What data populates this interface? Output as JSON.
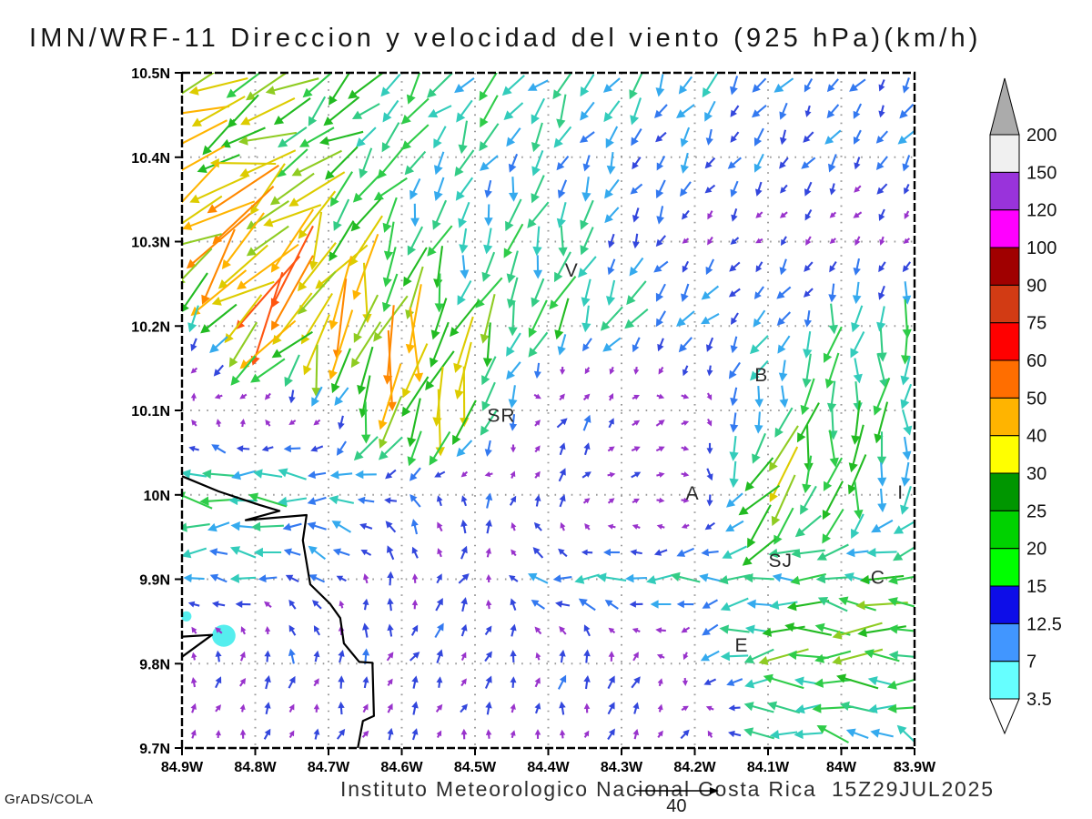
{
  "title": "IMN/WRF-11 Direccion y velocidad del viento (925 hPa)(km/h)",
  "footer": {
    "annotation": "Instituto Meteorologico Nacional Costa Rica  15Z29JUL2025",
    "credit": "GrADS/COLA"
  },
  "reference_vector": {
    "label": "40",
    "speed_kmh": 40
  },
  "chart_data": {
    "type": "vector_field_map",
    "title": "IMN/WRF-11 Direccion y velocidad del viento (925 hPa)(km/h)",
    "x_axis": {
      "labels": [
        "84.9W",
        "84.8W",
        "84.7W",
        "84.6W",
        "84.5W",
        "84.4W",
        "84.3W",
        "84.2W",
        "84.1W",
        "84W",
        "83.9W"
      ],
      "lon_min": -84.9,
      "lon_max": -83.9
    },
    "y_axis": {
      "labels": [
        "10.5N",
        "10.4N",
        "10.3N",
        "10.2N",
        "10.1N",
        "10N",
        "9.9N",
        "9.8N",
        "9.7N"
      ],
      "lat_max": 10.5,
      "lat_min": 9.7
    },
    "grid_step_deg": 0.1,
    "grid_on": true,
    "wind_field": {
      "units": "km/h",
      "lats": [
        10.5,
        10.4,
        10.3,
        10.2,
        10.1,
        10.0,
        9.9,
        9.8,
        9.7
      ],
      "lons": [
        -84.9,
        -84.8,
        -84.7,
        -84.6,
        -84.5,
        -84.4,
        -84.3,
        -84.2,
        -84.1,
        -84.0,
        -83.9
      ],
      "direction_deg_toward": [
        [
          235,
          232,
          228,
          226,
          224,
          220,
          216,
          212,
          214,
          216,
          214
        ],
        [
          245,
          250,
          235,
          215,
          208,
          205,
          210,
          211,
          211,
          212,
          211
        ],
        [
          232,
          228,
          210,
          200,
          190,
          195,
          205,
          218,
          222,
          220,
          218
        ],
        [
          150,
          225,
          202,
          192,
          205,
          200,
          215,
          220,
          225,
          190,
          185
        ],
        [
          10,
          40,
          190,
          195,
          197,
          25,
          35,
          100,
          190,
          185,
          182
        ],
        [
          272,
          268,
          272,
          300,
          355,
          30,
          80,
          95,
          215,
          188,
          182
        ],
        [
          268,
          278,
          310,
          0,
          30,
          280,
          268,
          266,
          268,
          282,
          272
        ],
        [
          5,
          25,
          5,
          28,
          30,
          5,
          25,
          200,
          266,
          268,
          267
        ],
        [
          10,
          20,
          28,
          18,
          8,
          3,
          18,
          30,
          280,
          288,
          310
        ]
      ],
      "speed_kmh": [
        [
          30,
          28,
          25,
          23,
          22,
          20,
          16,
          14,
          12,
          11,
          11
        ],
        [
          42,
          36,
          26,
          18,
          16,
          14,
          12,
          11,
          10,
          10,
          10
        ],
        [
          50,
          46,
          38,
          22,
          15,
          22,
          11,
          6,
          6,
          5,
          5
        ],
        [
          6,
          55,
          46,
          40,
          26,
          22,
          18,
          14,
          12,
          18,
          20
        ],
        [
          5,
          5,
          7,
          45,
          33,
          10,
          8,
          6,
          18,
          26,
          18
        ],
        [
          20,
          23,
          16,
          10,
          8,
          8,
          5,
          5,
          38,
          26,
          15
        ],
        [
          12,
          12,
          8,
          8,
          8,
          14,
          15,
          16,
          18,
          23,
          26
        ],
        [
          5,
          8,
          8,
          8,
          8,
          8,
          10,
          8,
          25,
          28,
          27
        ],
        [
          5,
          6,
          6,
          6,
          5,
          5,
          7,
          9,
          16,
          15,
          11
        ]
      ]
    },
    "speed_colors": {
      "thresholds": [
        6.5,
        9.5,
        12.5,
        15.5,
        18.5,
        22,
        26,
        31,
        36,
        42,
        48,
        56
      ],
      "colors": [
        "#9933CC",
        "#3347DD",
        "#3379F0",
        "#35AAEE",
        "#33CCBB",
        "#33CC85",
        "#2FCC49",
        "#22BB22",
        "#8FCC22",
        "#DDCC00",
        "#FFB400",
        "#FF8800",
        "#FF5511"
      ]
    },
    "colorbar": {
      "tick_labels": [
        "3.5",
        "7",
        "12.5",
        "15",
        "20",
        "25",
        "30",
        "40",
        "50",
        "60",
        "75",
        "90",
        "100",
        "120",
        "150",
        "200"
      ],
      "segment_colors": [
        "#66FFFF",
        "#4196FF",
        "#0D0DE8",
        "#00FF00",
        "#00D200",
        "#009600",
        "#FFFF00",
        "#FFB400",
        "#FF6E00",
        "#FF0000",
        "#D23B14",
        "#A00000",
        "#FF00FF",
        "#9933DB",
        "#F0F0F0"
      ],
      "above_color": "#ABABAB",
      "below_color": "#FFFFFF"
    },
    "cities": [
      {
        "label": "V",
        "lon": -84.368,
        "lat": 10.267
      },
      {
        "label": "B",
        "lon": -84.109,
        "lat": 10.143
      },
      {
        "label": "SR",
        "lon": -84.464,
        "lat": 10.095
      },
      {
        "label": "A",
        "lon": -84.203,
        "lat": 10.003
      },
      {
        "label": "SJ",
        "lon": -84.083,
        "lat": 9.923
      },
      {
        "label": "C",
        "lon": -83.95,
        "lat": 9.903
      },
      {
        "label": "E",
        "lon": -84.136,
        "lat": 9.823
      },
      {
        "label": "I",
        "lon": -83.919,
        "lat": 10.004
      }
    ],
    "coastlines": [
      [
        [
          -84.9,
          10.022
        ],
        [
          -84.85,
          10.004
        ],
        [
          -84.794,
          9.988
        ],
        [
          -84.767,
          9.981
        ],
        [
          -84.813,
          9.97
        ],
        [
          -84.73,
          9.976
        ],
        [
          -84.735,
          9.946
        ],
        [
          -84.725,
          9.894
        ],
        [
          -84.698,
          9.871
        ],
        [
          -84.684,
          9.854
        ],
        [
          -84.679,
          9.824
        ],
        [
          -84.658,
          9.802
        ],
        [
          -84.64,
          9.801
        ],
        [
          -84.638,
          9.738
        ],
        [
          -84.653,
          9.732
        ],
        [
          -84.66,
          9.7
        ]
      ],
      [
        [
          -84.9,
          9.832
        ],
        [
          -84.859,
          9.834
        ],
        [
          -84.9,
          9.808
        ]
      ]
    ],
    "water_patches": [
      {
        "lon": -84.894,
        "lat": 9.856,
        "rx_deg": 0.007,
        "ry_deg": 0.006
      },
      {
        "lon": -84.843,
        "lat": 9.833,
        "rx_deg": 0.016,
        "ry_deg": 0.013
      }
    ],
    "reference_vector": {
      "speed_kmh": 40,
      "label": "40"
    }
  }
}
